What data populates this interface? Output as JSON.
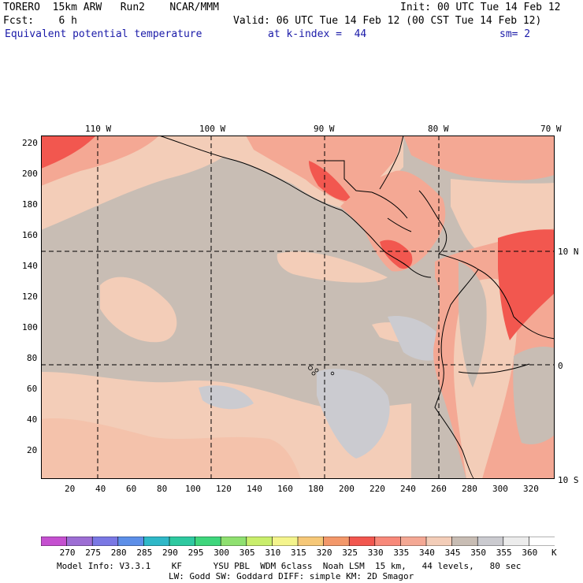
{
  "header": {
    "model": "TORERO  15km ARW   Run2    NCAR/MMM",
    "init": "Init: 00 UTC Tue 14 Feb 12",
    "fcst": "Fcst:    6 h",
    "valid": "Valid: 06 UTC Tue 14 Feb 12 (00 CST Tue 14 Feb 12)",
    "field": "Equivalent potential temperature",
    "kindex": "at k-index =  44",
    "sm": "sm= 2"
  },
  "map": {
    "top_lon_labels": [
      "110 W",
      "100 W",
      "90 W",
      "80 W",
      "70 W"
    ],
    "right_lat_labels": [
      "10 N",
      "0",
      "10 S"
    ],
    "left_y_ticks": [
      "220",
      "200",
      "180",
      "160",
      "140",
      "120",
      "100",
      "80",
      "60",
      "40",
      "20"
    ],
    "bottom_x_ticks": [
      "20",
      "40",
      "60",
      "80",
      "100",
      "120",
      "140",
      "160",
      "180",
      "200",
      "220",
      "240",
      "260",
      "280",
      "300",
      "320"
    ],
    "ocean_color": "#c8bdb4",
    "warm_colors": {
      "c335": "#f8897a",
      "c330": "#f2574f",
      "c340": "#f4a894",
      "c345": "#f3cdb8",
      "c355": "#cbcbd0"
    },
    "coastline_color": "#000000",
    "grid_style": "dashed"
  },
  "colorbar": {
    "labels": [
      "270",
      "275",
      "280",
      "285",
      "290",
      "295",
      "300",
      "305",
      "310",
      "315",
      "320",
      "325",
      "330",
      "335",
      "340",
      "345",
      "350",
      "355",
      "360",
      "K"
    ],
    "colors": [
      "#c550d0",
      "#9d6ed4",
      "#7a78e4",
      "#5d8fe8",
      "#2fb8c8",
      "#2ec9a0",
      "#3fd67c",
      "#8fe070",
      "#c9ee6c",
      "#f4f48c",
      "#f6c878",
      "#f3986a",
      "#f2574f",
      "#f8897a",
      "#f4a894",
      "#f3cdb8",
      "#c8bdb4",
      "#cbcbd0",
      "#ececec",
      "#ffffff"
    ]
  },
  "footer": {
    "line1": "Model Info: V3.3.1    KF      YSU PBL  WDM 6class  Noah LSM  15 km,   44 levels,   80 sec",
    "line2": "LW: Godd SW: Goddard DIFF: simple KM: 2D Smagor"
  }
}
